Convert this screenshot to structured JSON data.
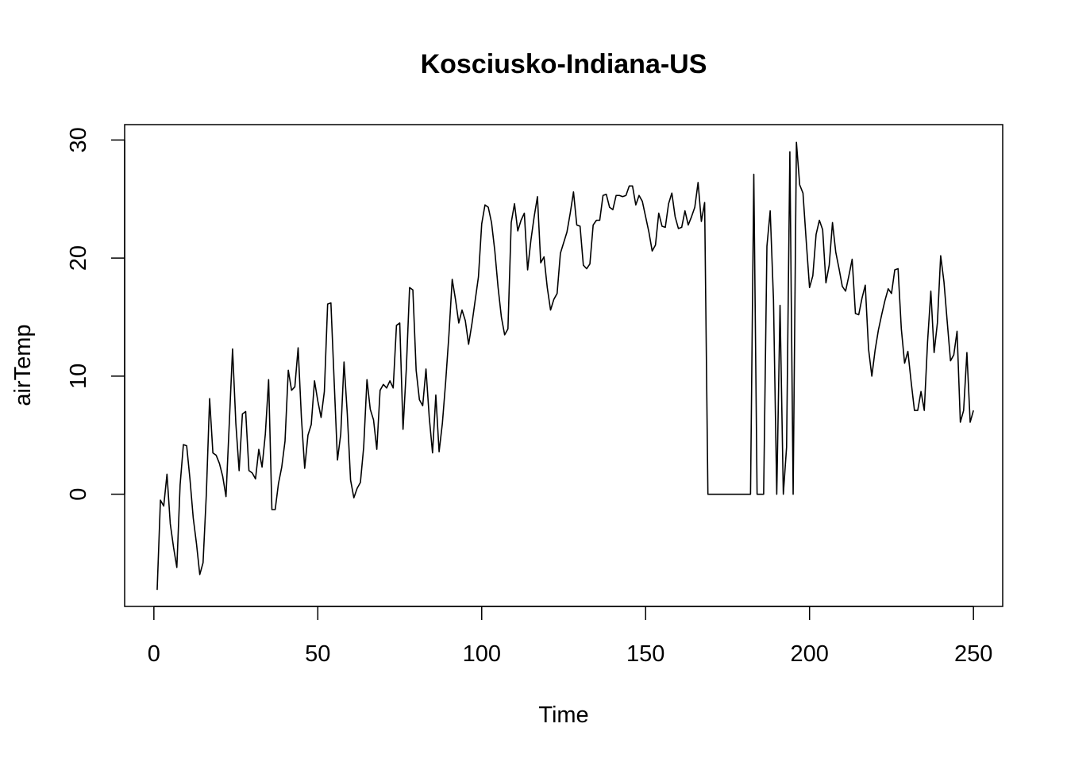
{
  "chart_data": {
    "type": "line",
    "title": "Kosciusko-Indiana-US",
    "xlabel": "Time",
    "ylabel": "airTemp",
    "xlim": [
      -8.92,
      258.92
    ],
    "ylim": [
      -9.5,
      31.3
    ],
    "xticks": [
      0,
      50,
      100,
      150,
      200,
      250
    ],
    "yticks": [
      0,
      10,
      20,
      30
    ],
    "grid": false,
    "series": [
      {
        "values": [
          -8.1,
          -0.5,
          -1.0,
          1.7,
          -2.5,
          -4.5,
          -6.2,
          0.8,
          4.2,
          4.1,
          1.3,
          -2.0,
          -4.2,
          -6.8,
          -5.8,
          0.0,
          8.1,
          3.5,
          3.3,
          2.6,
          1.5,
          -0.2,
          6.0,
          12.3,
          6.0,
          2.0,
          6.8,
          7.0,
          2.0,
          1.8,
          1.3,
          3.8,
          2.3,
          5.1,
          9.7,
          -1.3,
          -1.3,
          0.9,
          2.3,
          4.5,
          10.5,
          8.8,
          9.1,
          12.4,
          6.5,
          2.2,
          5.0,
          5.9,
          9.6,
          7.9,
          6.5,
          8.7,
          16.1,
          16.2,
          9.5,
          2.9,
          5.1,
          11.2,
          6.8,
          1.2,
          -0.3,
          0.5,
          1.0,
          4.0,
          9.7,
          7.2,
          6.3,
          3.8,
          8.8,
          9.3,
          9.0,
          9.6,
          9.0,
          14.3,
          14.5,
          5.5,
          10.6,
          17.5,
          17.3,
          10.5,
          8.0,
          7.5,
          10.6,
          6.5,
          3.5,
          8.4,
          3.6,
          6.0,
          9.5,
          13.5,
          18.2,
          16.5,
          14.5,
          15.6,
          14.7,
          12.7,
          14.4,
          16.4,
          18.4,
          22.9,
          24.5,
          24.3,
          23.0,
          20.6,
          17.5,
          15.0,
          13.5,
          14.0,
          23.0,
          24.6,
          22.3,
          23.2,
          23.8,
          19.0,
          21.5,
          23.5,
          25.2,
          19.6,
          20.1,
          17.5,
          15.6,
          16.5,
          17.0,
          20.4,
          21.3,
          22.2,
          23.8,
          25.6,
          22.8,
          22.7,
          19.4,
          19.1,
          19.5,
          22.8,
          23.2,
          23.2,
          25.3,
          25.4,
          24.3,
          24.1,
          25.3,
          25.3,
          25.2,
          25.3,
          26.1,
          26.1,
          24.5,
          25.3,
          24.8,
          23.5,
          22.2,
          20.6,
          21.1,
          23.8,
          22.7,
          22.6,
          24.6,
          25.5,
          23.5,
          22.5,
          22.6,
          24.0,
          22.8,
          23.5,
          24.3,
          26.4,
          23.1,
          24.7,
          0.0,
          0.0,
          0.0,
          0.0,
          0.0,
          0.0,
          0.0,
          0.0,
          0.0,
          0.0,
          0.0,
          0.0,
          0.0,
          0.0,
          27.1,
          0.0,
          0.0,
          0.0,
          21.0,
          24.0,
          16.5,
          0.0,
          16.0,
          0.0,
          4.0,
          29.0,
          0.0,
          29.8,
          26.2,
          25.5,
          21.4,
          17.5,
          18.5,
          22.0,
          23.2,
          22.4,
          17.9,
          19.4,
          23.0,
          20.5,
          19.1,
          17.6,
          17.2,
          18.5,
          19.9,
          15.3,
          15.2,
          16.6,
          17.7,
          12.3,
          10.0,
          12.2,
          13.9,
          15.2,
          16.4,
          17.4,
          17.0,
          19.0,
          19.1,
          14.0,
          11.1,
          12.1,
          9.5,
          7.1,
          7.1,
          8.7,
          7.1,
          12.9,
          17.2,
          12.0,
          14.5,
          20.2,
          18.0,
          14.6,
          11.3,
          11.8,
          13.8,
          6.1,
          7.1,
          12.0,
          6.1,
          7.1
        ]
      }
    ]
  }
}
